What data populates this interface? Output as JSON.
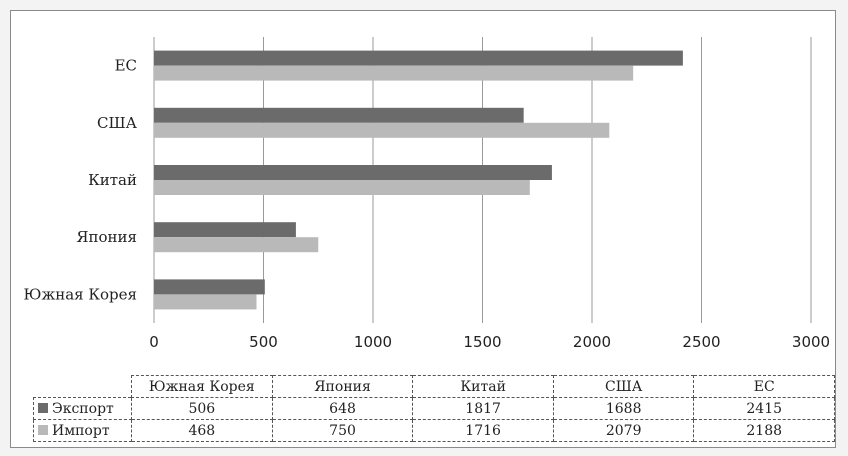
{
  "chart_data": {
    "type": "bar",
    "orientation": "horizontal",
    "categories": [
      "Южная Корея",
      "Япония",
      "Китай",
      "США",
      "ЕС"
    ],
    "series": [
      {
        "name": "Экспорт",
        "color": "#6b6b6b",
        "values": [
          506,
          648,
          1817,
          1688,
          2415
        ]
      },
      {
        "name": "Импорт",
        "color": "#b9b9b9",
        "values": [
          468,
          750,
          1716,
          2079,
          2188
        ]
      }
    ],
    "xlim": [
      0,
      3000
    ],
    "xticks": [
      "0",
      "500",
      "1000",
      "1500",
      "2000",
      "2500",
      "3000"
    ],
    "grid": true,
    "legend": "data-table"
  },
  "table": {
    "headers": [
      "Южная Корея",
      "Япония",
      "Китай",
      "США",
      "ЕС"
    ],
    "rows": [
      {
        "label": "Экспорт",
        "cells": [
          "506",
          "648",
          "1817",
          "1688",
          "2415"
        ]
      },
      {
        "label": "Импорт",
        "cells": [
          "468",
          "750",
          "1716",
          "2079",
          "2188"
        ]
      }
    ]
  }
}
